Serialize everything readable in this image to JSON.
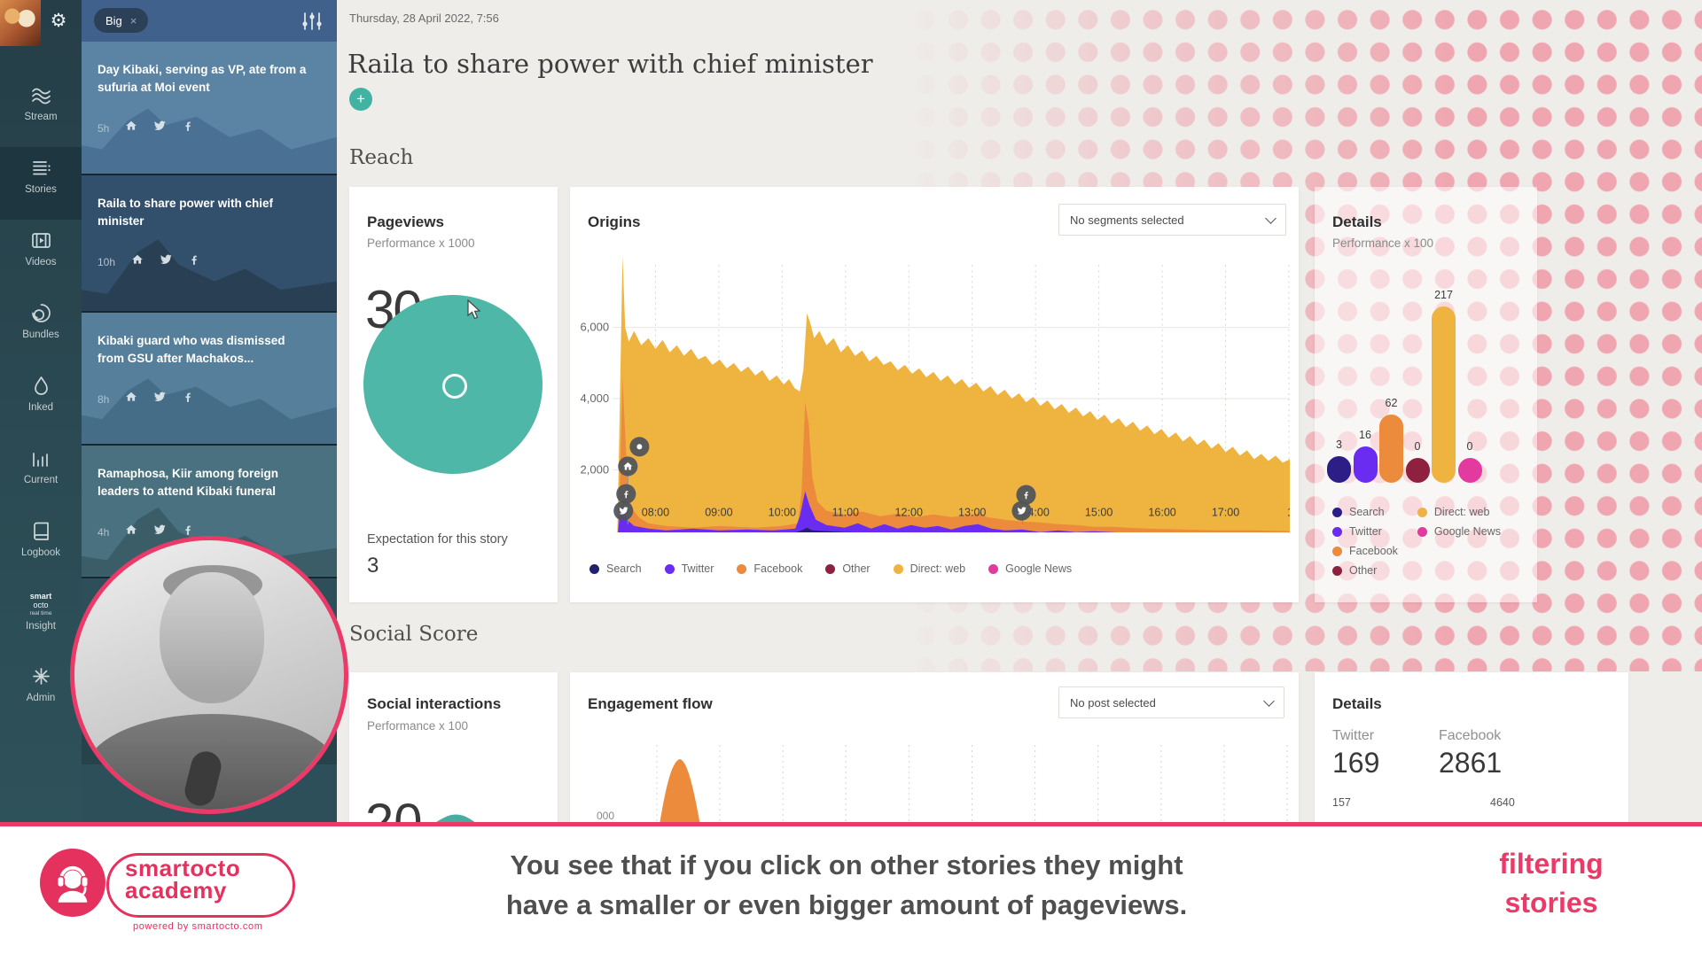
{
  "icons": {
    "gear": "⚙"
  },
  "sidebar": {
    "items": [
      {
        "id": "stream",
        "label": "Stream"
      },
      {
        "id": "stories",
        "label": "Stories",
        "active": true
      },
      {
        "id": "videos",
        "label": "Videos"
      },
      {
        "id": "bundles",
        "label": "Bundles"
      },
      {
        "id": "inked",
        "label": "Inked"
      },
      {
        "id": "current",
        "label": "Current"
      },
      {
        "id": "logbook",
        "label": "Logbook"
      },
      {
        "id": "insight",
        "label": "Insight",
        "logo_lines": [
          "smart",
          "octo",
          "real time"
        ]
      },
      {
        "id": "admin",
        "label": "Admin"
      }
    ]
  },
  "story_panel": {
    "filter_chip": "Big",
    "filter_chip_close": "×",
    "stories": [
      {
        "title": "Day Kibaki, serving as VP, ate from a sufuria at Moi event",
        "age": "5h",
        "channels": [
          "home",
          "twitter",
          "facebook"
        ],
        "bg": "#5b84a4",
        "mountain": "#4a7194"
      },
      {
        "title": "Raila to share power with chief minister",
        "age": "10h",
        "channels": [
          "home",
          "twitter",
          "facebook"
        ],
        "bg": "#32506b",
        "mountain": "#293f54"
      },
      {
        "title": "Kibaki guard who was dismissed from GSU after Machakos...",
        "age": "8h",
        "channels": [
          "home",
          "twitter",
          "facebook"
        ],
        "bg": "#557f9a",
        "mountain": "#466d87"
      },
      {
        "title": "Ramaphosa, Kiir among foreign leaders to attend Kibaki funeral",
        "age": "4h",
        "channels": [
          "home",
          "twitter",
          "facebook"
        ],
        "bg": "#49717f",
        "mountain": "#3a5d68"
      }
    ]
  },
  "header": {
    "date": "Thursday, 28 April 2022, 7:56",
    "title": "Raila to share power with chief minister",
    "add_button": "+"
  },
  "sections": {
    "reach": "Reach",
    "social": "Social Score"
  },
  "reach": {
    "pageviews": {
      "title": "Pageviews",
      "subtitle": "Performance x 1000",
      "value": "30",
      "expectation_label": "Expectation for this story",
      "expectation_value": "3",
      "gauge_color": "#4fb7a7"
    },
    "origins": {
      "title": "Origins",
      "segment_dropdown": "No segments selected"
    },
    "details": {
      "title": "Details",
      "subtitle": "Performance x 100"
    }
  },
  "social": {
    "interactions": {
      "title": "Social interactions",
      "subtitle": "Performance x 100",
      "value": "20"
    },
    "engagement": {
      "title": "Engagement flow",
      "post_dropdown": "No post selected",
      "partial_axis_label": "000"
    },
    "details": {
      "title": "Details",
      "metrics": [
        {
          "label": "Twitter",
          "value": "169",
          "sub_value": "157"
        },
        {
          "label": "Facebook",
          "value": "2861",
          "sub_value": "4640"
        }
      ]
    }
  },
  "banner": {
    "caption_line1": "You see that if you click on other stories they might",
    "caption_line2": "have a smaller or even bigger amount of pageviews.",
    "logo_line1": "smartocto",
    "logo_line2": "academy",
    "logo_powered": "powered by smartocto.com",
    "topic_line1": "filtering",
    "topic_line2": "stories",
    "accent": "#ec3a68"
  },
  "chart_data": [
    {
      "id": "origins",
      "type": "area",
      "title": "Origins",
      "x_labels": [
        "08:00",
        "09:00",
        "10:00",
        "11:00",
        "12:00",
        "13:00",
        "14:00",
        "15:00",
        "16:00",
        "17:00"
      ],
      "partial_last_label": "1",
      "y_ticks": [
        {
          "label": "2,000",
          "value": 2000
        },
        {
          "label": "4,000",
          "value": 4000
        },
        {
          "label": "6,000",
          "value": 6000
        }
      ],
      "ylim": [
        0,
        7500
      ],
      "grid": "horizontal solid lines + vertical dashed hourly lines",
      "legend_position": "bottom",
      "legend": [
        {
          "name": "Search",
          "color": "#23206f"
        },
        {
          "name": "Twitter",
          "color": "#6a2cf0"
        },
        {
          "name": "Facebook",
          "color": "#ec8b3c"
        },
        {
          "name": "Other",
          "color": "#8e2040"
        },
        {
          "name": "Direct: web",
          "color": "#efb440"
        },
        {
          "name": "Google News",
          "color": "#e23a9e"
        }
      ],
      "series": [
        {
          "name": "Direct: web",
          "color": "#efb440",
          "hourly_values": [
            5600,
            5200,
            4500,
            5400,
            5000,
            4750,
            4300,
            3800,
            3400,
            2900,
            2400
          ]
        },
        {
          "name": "Facebook",
          "color": "#ec8b3c",
          "hourly_values": [
            650,
            450,
            420,
            820,
            760,
            720,
            580,
            480,
            400,
            330,
            280
          ]
        },
        {
          "name": "Twitter",
          "color": "#6a2cf0",
          "hourly_values": [
            330,
            300,
            320,
            420,
            380,
            400,
            300,
            270,
            230,
            190,
            150
          ]
        },
        {
          "name": "Search",
          "color": "#23206f",
          "hourly_values": [
            220,
            200,
            200,
            210,
            200,
            190,
            180,
            170,
            160,
            150,
            140
          ]
        }
      ],
      "peaks": [
        {
          "series": "Direct: web",
          "time": "07:50",
          "value": 7200
        },
        {
          "series": "Facebook",
          "time": "07:50",
          "value": 4600
        },
        {
          "series": "Direct: web",
          "time": "10:20",
          "value": 6400
        },
        {
          "series": "Facebook",
          "time": "10:20",
          "value": 3900
        },
        {
          "series": "Twitter",
          "time": "10:20",
          "value": 1400
        }
      ],
      "markers": [
        {
          "icon": "dot",
          "time": "07:55"
        },
        {
          "icon": "home",
          "time": "07:52"
        },
        {
          "icon": "facebook",
          "time": "07:50"
        },
        {
          "icon": "twitter",
          "time": "07:48"
        },
        {
          "icon": "facebook",
          "time": "13:35"
        },
        {
          "icon": "twitter",
          "time": "13:33"
        }
      ]
    },
    {
      "id": "reach-details",
      "type": "bar",
      "title": "Details",
      "subtitle": "Performance x 100",
      "categories": [
        "Search",
        "Twitter",
        "Facebook",
        "Other",
        "Direct: web",
        "Google News"
      ],
      "values": [
        3,
        16,
        62,
        0,
        217,
        0
      ],
      "colors": [
        "#2c1e86",
        "#6a2cf0",
        "#ec8b3c",
        "#8e2040",
        "#efb440",
        "#e23a9e"
      ],
      "legend_columns": [
        [
          "Search",
          "Twitter",
          "Facebook",
          "Other"
        ],
        [
          "Direct: web",
          "Google News"
        ]
      ]
    },
    {
      "id": "engagement-flow",
      "type": "area",
      "title": "Engagement flow",
      "series": [
        {
          "name": "Engagement",
          "color": "#ec8b3c",
          "peak_time": "08:15",
          "shape": "single bell peak near start, flat elsewhere"
        }
      ],
      "partial_y_tick": "000"
    }
  ]
}
